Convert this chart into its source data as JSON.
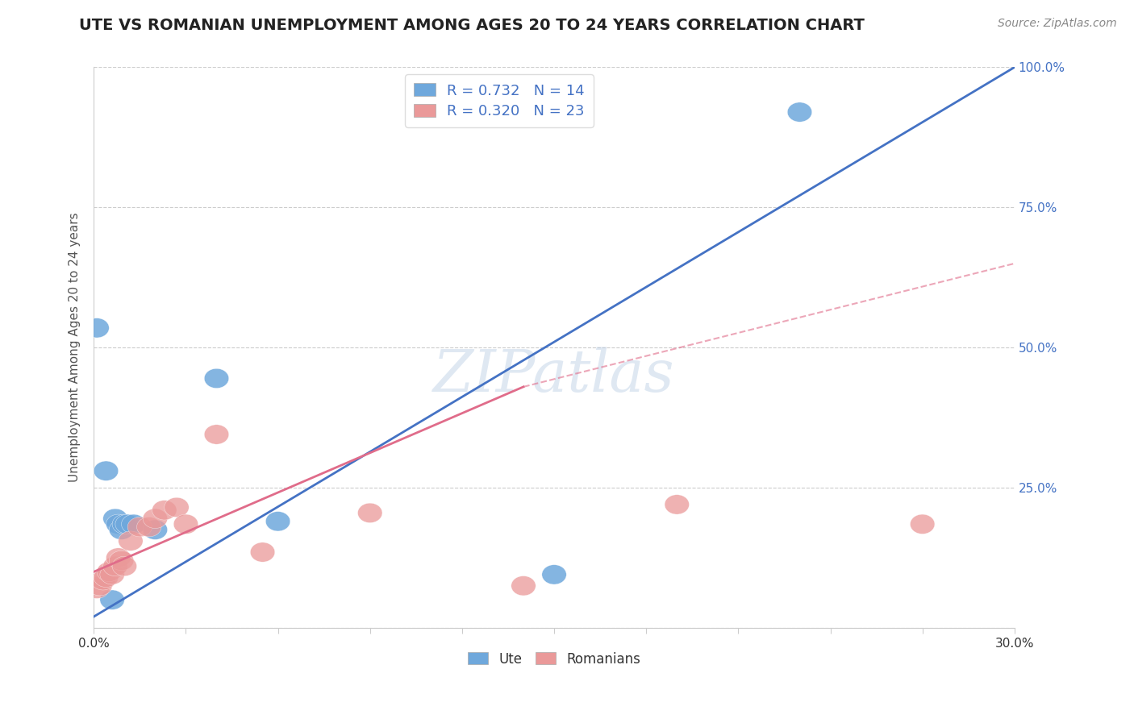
{
  "title": "UTE VS ROMANIAN UNEMPLOYMENT AMONG AGES 20 TO 24 YEARS CORRELATION CHART",
  "source_text": "Source: ZipAtlas.com",
  "ylabel": "Unemployment Among Ages 20 to 24 years",
  "xlim": [
    0.0,
    0.3
  ],
  "ylim": [
    0.0,
    1.0
  ],
  "xticks": [
    0.0,
    0.03,
    0.06,
    0.09,
    0.12,
    0.15,
    0.18,
    0.21,
    0.24,
    0.27,
    0.3
  ],
  "xtick_labels": [
    "0.0%",
    "",
    "",
    "",
    "",
    "",
    "",
    "",
    "",
    "",
    "30.0%"
  ],
  "yticks": [
    0.0,
    0.25,
    0.5,
    0.75,
    1.0
  ],
  "ytick_labels_right": [
    "",
    "25.0%",
    "50.0%",
    "75.0%",
    "100.0%"
  ],
  "ute_color": "#6fa8dc",
  "romanian_color": "#ea9999",
  "ute_line_color": "#4472c4",
  "romanian_line_color": "#e06c8a",
  "ute_R": 0.732,
  "ute_N": 14,
  "romanian_R": 0.32,
  "romanian_N": 23,
  "ute_points": [
    [
      0.001,
      0.535
    ],
    [
      0.004,
      0.28
    ],
    [
      0.006,
      0.05
    ],
    [
      0.007,
      0.195
    ],
    [
      0.008,
      0.185
    ],
    [
      0.009,
      0.175
    ],
    [
      0.01,
      0.185
    ],
    [
      0.011,
      0.185
    ],
    [
      0.013,
      0.185
    ],
    [
      0.02,
      0.175
    ],
    [
      0.04,
      0.445
    ],
    [
      0.06,
      0.19
    ],
    [
      0.15,
      0.095
    ],
    [
      0.23,
      0.92
    ]
  ],
  "romanian_points": [
    [
      0.001,
      0.07
    ],
    [
      0.002,
      0.075
    ],
    [
      0.003,
      0.085
    ],
    [
      0.004,
      0.09
    ],
    [
      0.005,
      0.1
    ],
    [
      0.006,
      0.095
    ],
    [
      0.007,
      0.11
    ],
    [
      0.008,
      0.125
    ],
    [
      0.009,
      0.12
    ],
    [
      0.01,
      0.11
    ],
    [
      0.012,
      0.155
    ],
    [
      0.015,
      0.18
    ],
    [
      0.018,
      0.18
    ],
    [
      0.02,
      0.195
    ],
    [
      0.023,
      0.21
    ],
    [
      0.027,
      0.215
    ],
    [
      0.03,
      0.185
    ],
    [
      0.04,
      0.345
    ],
    [
      0.055,
      0.135
    ],
    [
      0.09,
      0.205
    ],
    [
      0.14,
      0.075
    ],
    [
      0.19,
      0.22
    ],
    [
      0.27,
      0.185
    ]
  ],
  "ute_line": [
    [
      0.0,
      0.02
    ],
    [
      0.3,
      1.0
    ]
  ],
  "romanian_line_solid": [
    [
      0.0,
      0.1
    ],
    [
      0.14,
      0.43
    ]
  ],
  "romanian_line_dashed": [
    [
      0.14,
      0.43
    ],
    [
      0.3,
      0.65
    ]
  ],
  "watermark": "ZIPatlas",
  "background_color": "#ffffff",
  "grid_color": "#cccccc",
  "title_fontsize": 14,
  "axis_label_fontsize": 11,
  "tick_fontsize": 11,
  "legend_fontsize": 13,
  "bottom_legend_labels": [
    "Ute",
    "Romanians"
  ]
}
